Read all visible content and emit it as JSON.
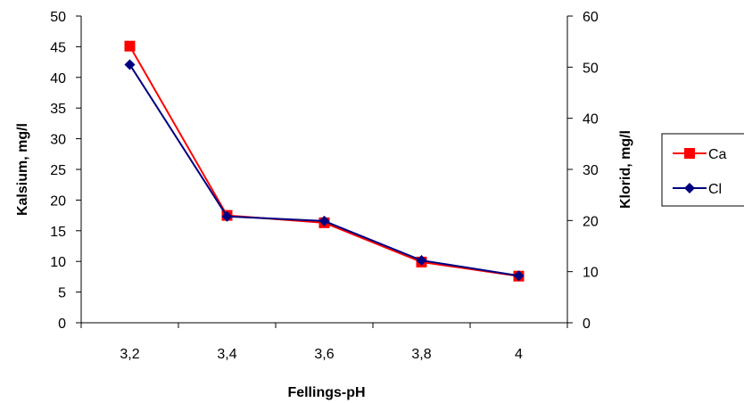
{
  "chart_data": {
    "type": "line",
    "title": "",
    "xlabel": "Fellings-pH",
    "ylabel_left": "Kalsium, mg/l",
    "ylabel_right": "Klorid, mg/l",
    "categories": [
      "3,2",
      "3,4",
      "3,6",
      "3,8",
      "4"
    ],
    "ylim_left": [
      0,
      50
    ],
    "yticks_left": [
      "0",
      "5",
      "10",
      "15",
      "20",
      "25",
      "30",
      "35",
      "40",
      "45",
      "50"
    ],
    "ylim_right": [
      0,
      60
    ],
    "yticks_right": [
      "0",
      "10",
      "20",
      "30",
      "40",
      "50",
      "60"
    ],
    "grid": false,
    "legend_position": "right",
    "series": [
      {
        "name": "Ca",
        "axis": "left",
        "values": [
          45.1,
          17.5,
          16.3,
          9.9,
          7.6
        ],
        "color": "#ff0000",
        "marker": "square"
      },
      {
        "name": "Cl",
        "axis": "right",
        "values": [
          50.5,
          20.8,
          19.9,
          12.2,
          9.2
        ],
        "color": "#000080",
        "marker": "diamond"
      }
    ]
  }
}
